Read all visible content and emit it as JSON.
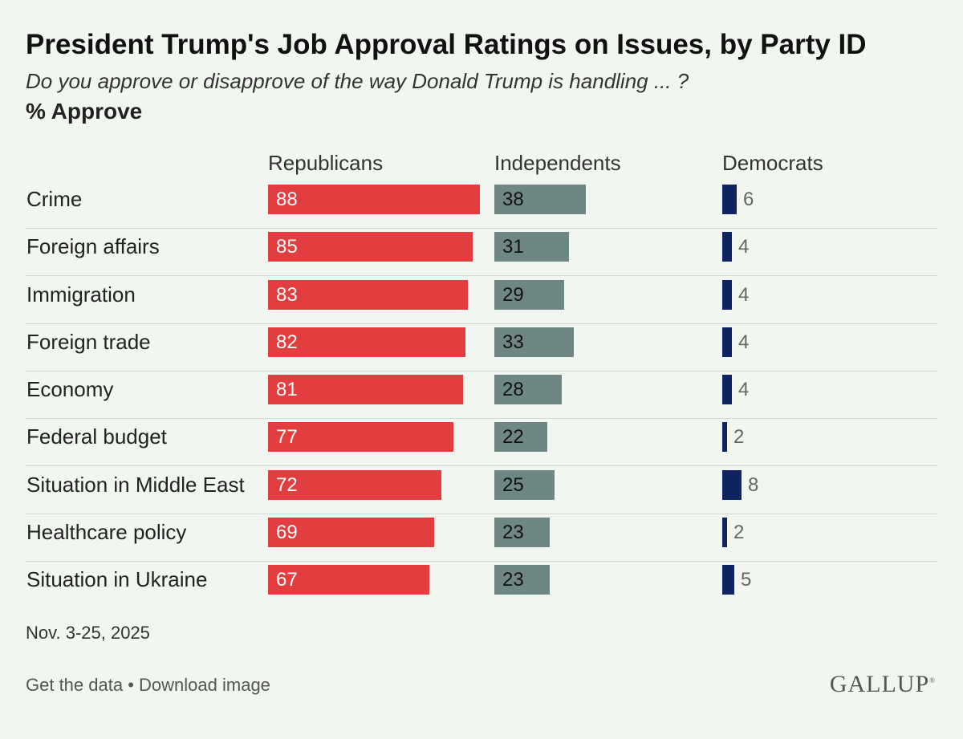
{
  "header": {
    "title": "President Trump's Job Approval Ratings on Issues, by Party ID",
    "subtitle": "Do you approve or disapprove of the way Donald Trump is handling ... ?",
    "measure": "% Approve"
  },
  "columns": {
    "republicans": "Republicans",
    "independents": "Independents",
    "democrats": "Democrats"
  },
  "colors": {
    "republicans": "#e23e40",
    "independents": "#6f8784",
    "democrats": "#0f2460",
    "background": "#f2f6f1"
  },
  "chart_data": {
    "type": "bar",
    "categories": [
      "Crime",
      "Foreign affairs",
      "Immigration",
      "Foreign trade",
      "Economy",
      "Federal budget",
      "Situation in Middle East",
      "Healthcare policy",
      "Situation in Ukraine"
    ],
    "series": [
      {
        "name": "Republicans",
        "values": [
          88,
          85,
          83,
          82,
          81,
          77,
          72,
          69,
          67
        ]
      },
      {
        "name": "Independents",
        "values": [
          38,
          31,
          29,
          33,
          28,
          22,
          25,
          23,
          23
        ]
      },
      {
        "name": "Democrats",
        "values": [
          6,
          4,
          4,
          4,
          4,
          2,
          8,
          2,
          5
        ]
      }
    ],
    "title": "President Trump's Job Approval Ratings on Issues, by Party ID",
    "ylabel": "% Approve"
  },
  "footer": {
    "date": "Nov. 3-25, 2025",
    "get_data": "Get the data",
    "separator": "•",
    "download": "Download image",
    "logo_text": "GALLUP",
    "logo_mark": "®"
  }
}
